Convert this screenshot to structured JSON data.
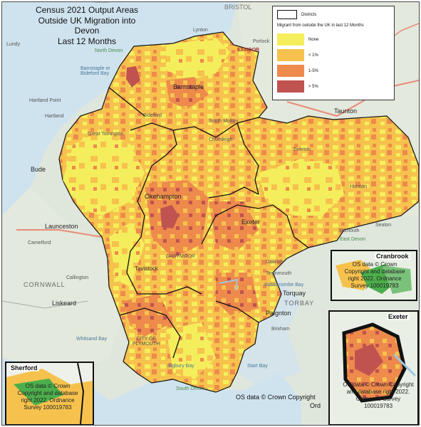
{
  "title": {
    "line1": "Census 2021 Output Areas",
    "line2": "Outside UK Migration into Devon",
    "line3": "Last 12 Months"
  },
  "legend": {
    "districts_label": "Districts",
    "heading": "Migrant from outside the UK in last 12 Months",
    "categories": [
      {
        "label": "None",
        "color": "#f5ee5c"
      },
      {
        "label": "< 1%",
        "color": "#f6c24d"
      },
      {
        "label": "1-5%",
        "color": "#ee8a4c"
      },
      {
        "label": "> 5%",
        "color": "#c0534f"
      }
    ]
  },
  "place_labels": {
    "bristol": "BRISTOL",
    "lundy": "Lundy",
    "lynton": "Lynton",
    "north_devon": "North Devon",
    "barnstaple_bay": "Barnstaple or Bideford Bay",
    "exmoor": "EXMOOR",
    "porlock": "Porlock",
    "hartland": "Hartland",
    "hartland_point": "Hartland Point",
    "barnstaple": "Barnstaple",
    "bideford": "Bideford",
    "south_molton": "South Molton",
    "taunton": "Taunton",
    "bude": "Bude",
    "great_torrington": "Great Torrington",
    "chumleigh": "Chumleigh",
    "tiverton": "Tiverton",
    "honiton": "Honiton",
    "okehampton": "Okehampton",
    "exeter": "Exeter",
    "launceston": "Launceston",
    "sidmouth": "Sidmouth",
    "east_devon": "East Devon",
    "seaton": "Seaton",
    "cornwall": "CORNWALL",
    "dartmoor": "DARTMOOR",
    "tavistock": "Tavistock",
    "dawlish": "Dawlish",
    "teignmouth": "Teignmouth",
    "babbacombe_bay": "Babbacombe Bay",
    "liskeard": "Liskeard",
    "torquay": "Torquay",
    "torbay": "TORBAY",
    "paignton": "Paignton",
    "brixham": "Brixham",
    "city_of_plymouth": "CITY OF PLYMOUTH",
    "whitsand_bay": "Whitsand Bay",
    "bigbury_bay": "Bigbury Bay",
    "start_bay": "Start Bay",
    "south_devon": "South Devon",
    "callington": "Callington",
    "camelford": "Camelford"
  },
  "insets": {
    "cranbrook": {
      "title": "Cranbrook",
      "copyright": "OS data © Crown Copyright and database right 2022. Ordnance Survey 100019783"
    },
    "exeter": {
      "title": "Exeter",
      "copyright": "OS data © Crown Copyright and database right 2022. Ordnance Survey 100019783"
    },
    "sherford": {
      "title": "Sherford",
      "copyright": "OS data © Crown Copyright and database right 2022. Ordnance Survey 100019783"
    }
  },
  "main_copyright": "OS data © Crown Copyright",
  "main_copyright_2": "Ord"
}
